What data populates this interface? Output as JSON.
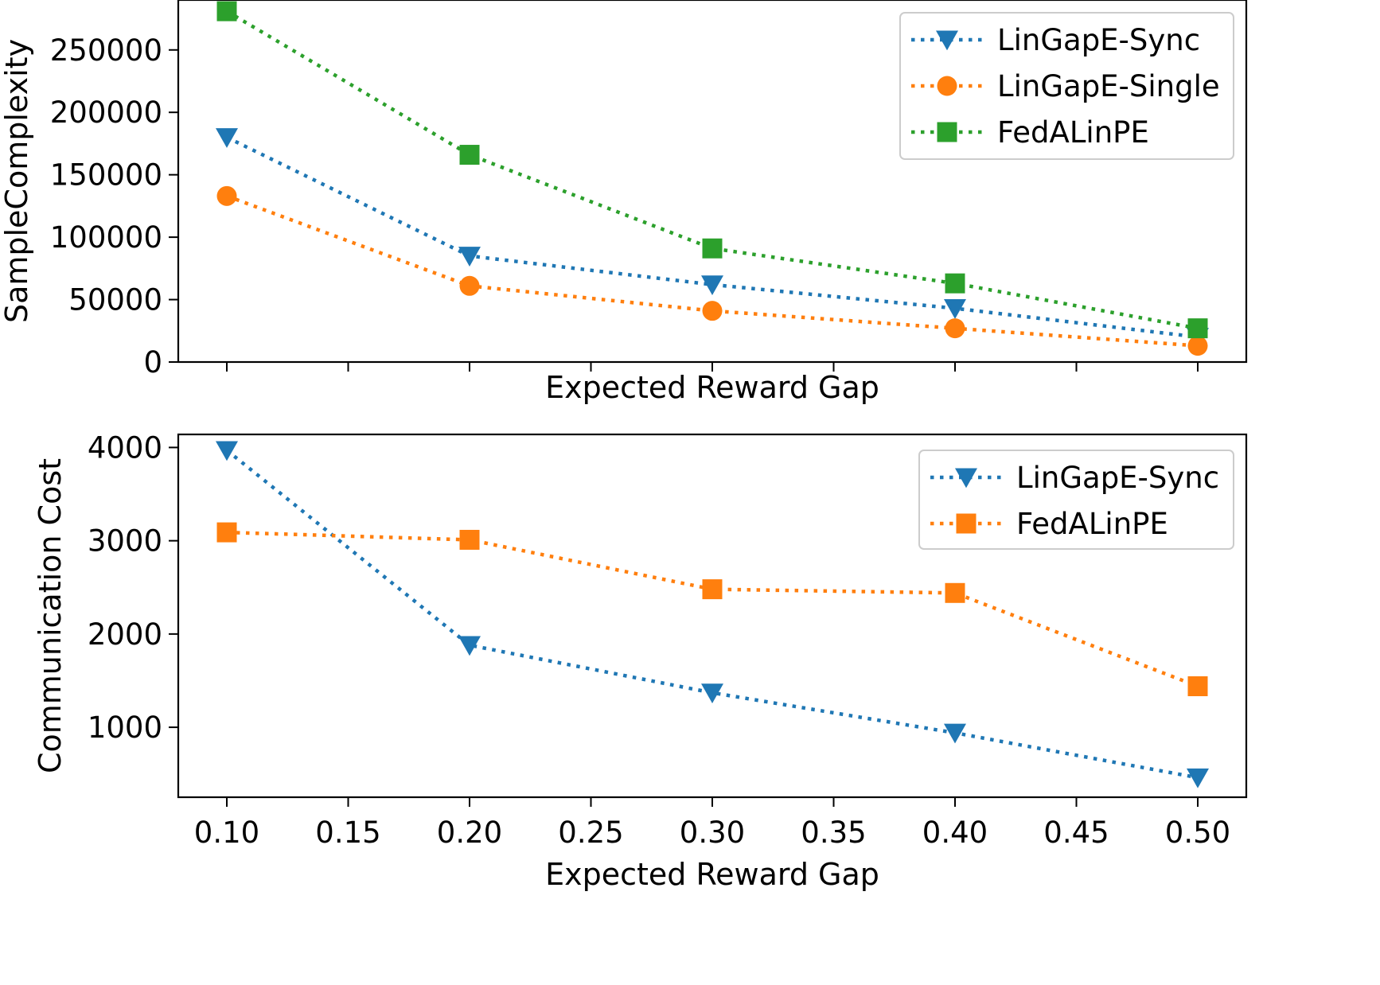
{
  "chart_data": [
    {
      "type": "line",
      "title": "",
      "xlabel": "Expected Reward Gap",
      "ylabel": "SampleComplexity",
      "x": [
        0.1,
        0.2,
        0.3,
        0.4,
        0.5
      ],
      "xlim": [
        0.08,
        0.52
      ],
      "ylim": [
        0,
        290000
      ],
      "xticks": [
        0.1,
        0.15,
        0.2,
        0.25,
        0.3,
        0.35,
        0.4,
        0.45,
        0.5
      ],
      "xtick_labels_visible": false,
      "yticks": [
        0,
        50000,
        100000,
        150000,
        200000,
        250000
      ],
      "ytick_labels": [
        "0",
        "50000",
        "100000",
        "150000",
        "200000",
        "250000"
      ],
      "grid": false,
      "legend_position": "top-right",
      "series": [
        {
          "name": "LinGapE-Sync",
          "marker": "triangle-down",
          "color": "#1f77b4",
          "line_style": "dotted",
          "values": [
            180000,
            85000,
            62000,
            43000,
            20000
          ]
        },
        {
          "name": "LinGapE-Single",
          "marker": "circle",
          "color": "#ff7f0e",
          "line_style": "dotted",
          "values": [
            133000,
            61000,
            41000,
            27000,
            13000
          ]
        },
        {
          "name": "FedALinPE",
          "marker": "square",
          "color": "#2ca02c",
          "line_style": "dotted",
          "values": [
            281000,
            166000,
            91000,
            63000,
            27000
          ]
        }
      ]
    },
    {
      "type": "line",
      "title": "",
      "xlabel": "Expected Reward Gap",
      "ylabel": "Communication Cost",
      "x": [
        0.1,
        0.2,
        0.3,
        0.4,
        0.5
      ],
      "xlim": [
        0.08,
        0.52
      ],
      "ylim": [
        250,
        4140
      ],
      "xticks": [
        0.1,
        0.15,
        0.2,
        0.25,
        0.3,
        0.35,
        0.4,
        0.45,
        0.5
      ],
      "xtick_labels": [
        "0.10",
        "0.15",
        "0.20",
        "0.25",
        "0.30",
        "0.35",
        "0.40",
        "0.45",
        "0.50"
      ],
      "xtick_labels_visible": true,
      "yticks": [
        1000,
        2000,
        3000,
        4000
      ],
      "ytick_labels": [
        "1000",
        "2000",
        "3000",
        "4000"
      ],
      "grid": false,
      "legend_position": "top-right",
      "series": [
        {
          "name": "LinGapE-Sync",
          "marker": "triangle-down",
          "color": "#1f77b4",
          "line_style": "dotted",
          "values": [
            3970,
            1880,
            1370,
            940,
            460
          ]
        },
        {
          "name": "FedALinPE",
          "marker": "square",
          "color": "#ff7f0e",
          "line_style": "dotted",
          "values": [
            3090,
            3010,
            2480,
            2440,
            1440
          ]
        }
      ]
    }
  ]
}
